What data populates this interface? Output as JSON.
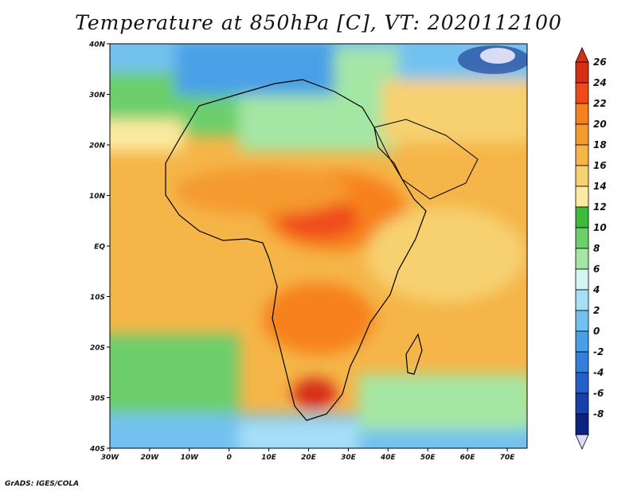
{
  "title": "Temperature at 850hPa [C], VT: 2020112100",
  "credit": "GrADS: IGES/COLA",
  "map": {
    "lat_labels": [
      "40N",
      "30N",
      "20N",
      "10N",
      "EQ",
      "10S",
      "20S",
      "30S",
      "40S"
    ],
    "lon_labels": [
      "30W",
      "20W",
      "10W",
      "0",
      "10E",
      "20E",
      "30E",
      "40E",
      "50E",
      "60E",
      "70E"
    ],
    "lat_range": [
      -40,
      40
    ],
    "lon_range": [
      -30,
      75
    ]
  },
  "colorbar": {
    "labels": [
      "26",
      "24",
      "22",
      "20",
      "18",
      "16",
      "14",
      "12",
      "10",
      "8",
      "6",
      "4",
      "2",
      "0",
      "-2",
      "-4",
      "-6",
      "-8"
    ],
    "colors": [
      "#d62f16",
      "#ef4b1a",
      "#f7811f",
      "#f59a2d",
      "#f5b548",
      "#f7d070",
      "#fbeaa0",
      "#3cbb3c",
      "#6ccf6c",
      "#a4e6a4",
      "#d6f5f2",
      "#a6dff6",
      "#73c1f0",
      "#4aa0e6",
      "#3180de",
      "#2460cc",
      "#1840a6",
      "#0b2380"
    ]
  }
}
